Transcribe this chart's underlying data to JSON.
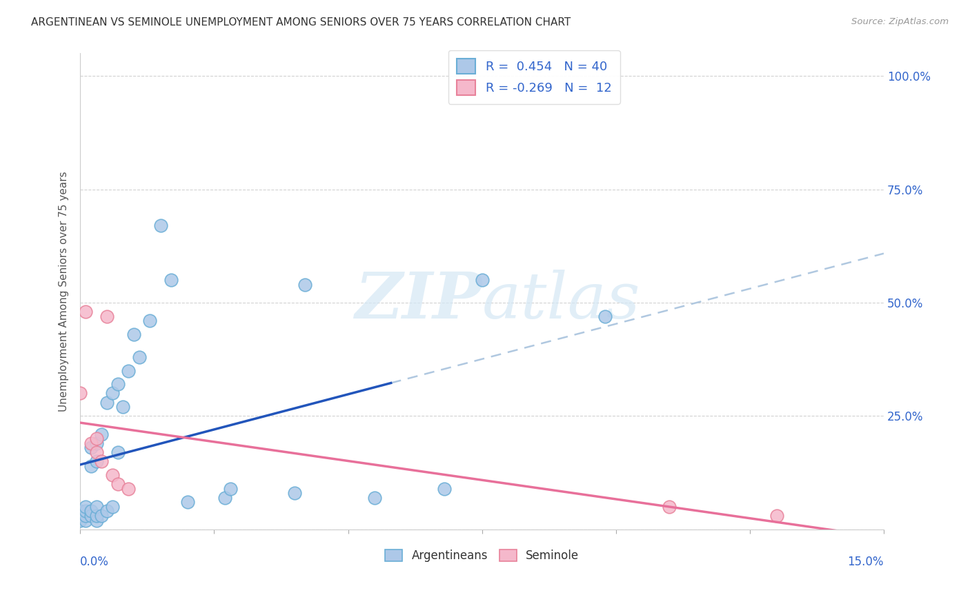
{
  "title": "ARGENTINEAN VS SEMINOLE UNEMPLOYMENT AMONG SENIORS OVER 75 YEARS CORRELATION CHART",
  "source": "Source: ZipAtlas.com",
  "ylabel": "Unemployment Among Seniors over 75 years",
  "xlim": [
    0.0,
    0.15
  ],
  "ylim": [
    0.0,
    1.05
  ],
  "argentinean_R": 0.454,
  "argentinean_N": 40,
  "seminole_R": -0.269,
  "seminole_N": 12,
  "argentinean_color": "#adc8e8",
  "seminole_color": "#f5b8cb",
  "argentinean_edge": "#6aaed6",
  "seminole_edge": "#e8829a",
  "trend_blue": "#2255bb",
  "trend_pink": "#e8709a",
  "trend_dashed_color": "#b0c8e0",
  "watermark_color": "#d5e8f5",
  "argentinean_x": [
    0.0,
    0.0,
    0.0,
    0.001,
    0.001,
    0.001,
    0.001,
    0.002,
    0.002,
    0.002,
    0.002,
    0.003,
    0.003,
    0.003,
    0.003,
    0.003,
    0.004,
    0.004,
    0.005,
    0.005,
    0.006,
    0.006,
    0.007,
    0.007,
    0.008,
    0.009,
    0.01,
    0.011,
    0.013,
    0.015,
    0.017,
    0.02,
    0.027,
    0.028,
    0.04,
    0.042,
    0.055,
    0.068,
    0.075,
    0.098
  ],
  "argentinean_y": [
    0.02,
    0.03,
    0.04,
    0.02,
    0.03,
    0.04,
    0.05,
    0.03,
    0.04,
    0.14,
    0.18,
    0.02,
    0.03,
    0.05,
    0.15,
    0.19,
    0.03,
    0.21,
    0.04,
    0.28,
    0.05,
    0.3,
    0.17,
    0.32,
    0.27,
    0.35,
    0.43,
    0.38,
    0.46,
    0.67,
    0.55,
    0.06,
    0.07,
    0.09,
    0.08,
    0.54,
    0.07,
    0.09,
    0.55,
    0.47
  ],
  "seminole_x": [
    0.0,
    0.001,
    0.002,
    0.003,
    0.003,
    0.004,
    0.005,
    0.006,
    0.007,
    0.009,
    0.11,
    0.13
  ],
  "seminole_y": [
    0.3,
    0.48,
    0.19,
    0.17,
    0.2,
    0.15,
    0.47,
    0.12,
    0.1,
    0.09,
    0.05,
    0.03
  ]
}
